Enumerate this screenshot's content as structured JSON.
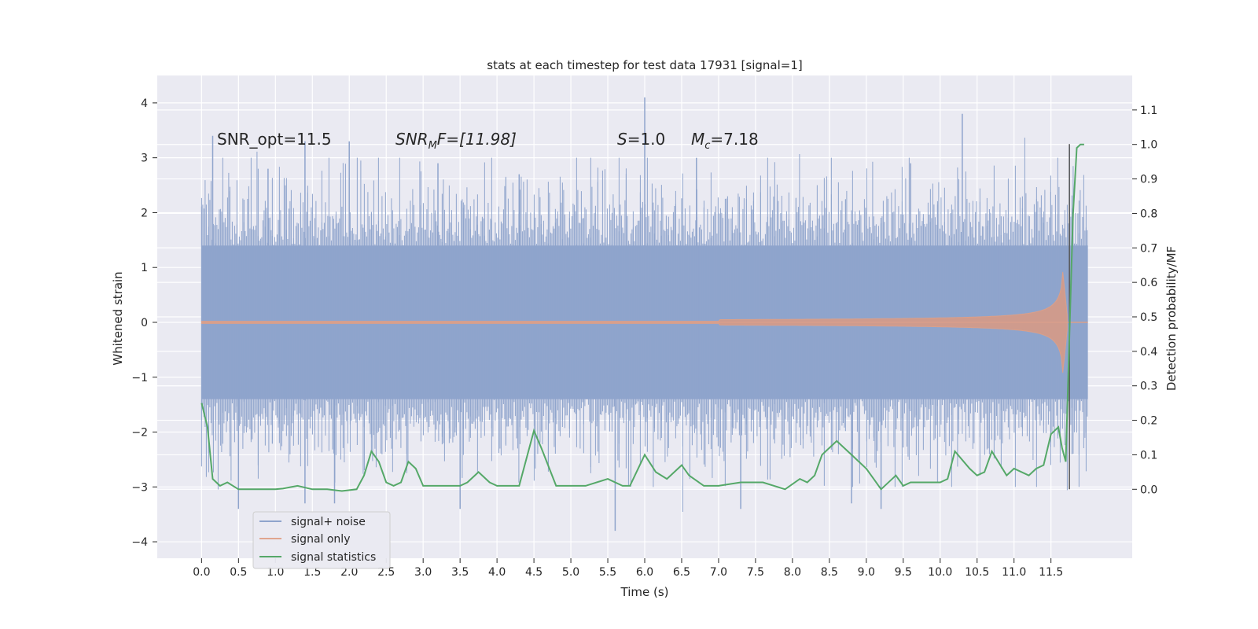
{
  "chart_data": {
    "type": "line",
    "title": "stats at each timestep for test data 17931 [signal=1]",
    "xlabel": "Time (s)",
    "ylabel_left": "Whitened strain",
    "ylabel_right": "Detection probability/MF",
    "xlim": [
      -0.6,
      12.6
    ],
    "ylim_left": [
      -4.3,
      4.5
    ],
    "ylim_right": [
      -0.2,
      1.2
    ],
    "x_ticks": [
      0.0,
      0.5,
      1.0,
      1.5,
      2.0,
      2.5,
      3.0,
      3.5,
      4.0,
      4.5,
      5.0,
      5.5,
      6.0,
      6.5,
      7.0,
      7.5,
      8.0,
      8.5,
      9.0,
      9.5,
      10.0,
      10.5,
      11.0,
      11.5
    ],
    "x_tick_labels": [
      "0.0",
      "0.5",
      "1.0",
      "1.5",
      "2.0",
      "2.5",
      "3.0",
      "3.5",
      "4.0",
      "4.5",
      "5.0",
      "5.5",
      "6.0",
      "6.5",
      "7.0",
      "7.5",
      "8.0",
      "8.5",
      "9.0",
      "9.5",
      "10.0",
      "10.5",
      "11.0",
      "11.5"
    ],
    "y_ticks_left": [
      4,
      3,
      2,
      1,
      0,
      -1,
      -2,
      -3,
      -4
    ],
    "y_tick_labels_left": [
      "4",
      "3",
      "2",
      "1",
      "0",
      "−1",
      "−2",
      "−3",
      "−4"
    ],
    "y_ticks_right": [
      1.1,
      1.0,
      0.9,
      0.8,
      0.7,
      0.6,
      0.5,
      0.4,
      0.3,
      0.2,
      0.1,
      0.0
    ],
    "y_tick_labels_right": [
      "1.1",
      "1.0",
      "0.9",
      "0.8",
      "0.7",
      "0.6",
      "0.5",
      "0.4",
      "0.3",
      "0.2",
      "0.1",
      "0.0"
    ],
    "grid": true,
    "legend_position": "lower-left",
    "annotations": {
      "snr_opt": "SNR_opt=11.5",
      "snr_mf_main": "SNR",
      "snr_mf_sub": "M",
      "snr_mf_rest": "F=[11.98]",
      "s_main": "S",
      "s_rest": "=1.0",
      "mc_main": "M",
      "mc_sub": "c",
      "mc_rest": "=7.18"
    },
    "vline_x": 11.75,
    "noise_range": [
      0.0,
      12.0
    ],
    "series": [
      {
        "name": "signal+ noise",
        "axis": "left",
        "color": "#8fa4cc",
        "envelope_upper_typical": 1.4,
        "envelope_lower_typical": -1.4,
        "peaks": [
          {
            "x": 0.15,
            "y": 3.4
          },
          {
            "x": 0.9,
            "y": 2.8
          },
          {
            "x": 1.4,
            "y": 3.3
          },
          {
            "x": 2.0,
            "y": 3.3
          },
          {
            "x": 3.2,
            "y": 2.9
          },
          {
            "x": 4.3,
            "y": 2.7
          },
          {
            "x": 6.0,
            "y": 4.1
          },
          {
            "x": 6.7,
            "y": 3.0
          },
          {
            "x": 9.6,
            "y": 2.9
          },
          {
            "x": 10.3,
            "y": 3.8
          },
          {
            "x": 11.75,
            "y": 3.2
          }
        ],
        "troughs": [
          {
            "x": 0.5,
            "y": -3.4
          },
          {
            "x": 1.4,
            "y": -3.3
          },
          {
            "x": 1.8,
            "y": -3.3
          },
          {
            "x": 3.5,
            "y": -3.4
          },
          {
            "x": 5.6,
            "y": -3.8
          },
          {
            "x": 7.3,
            "y": -3.4
          },
          {
            "x": 8.8,
            "y": -3.3
          },
          {
            "x": 9.2,
            "y": -3.4
          }
        ]
      },
      {
        "name": "signal only",
        "axis": "left",
        "color": "#d9a08b",
        "chirp_start": 7.0,
        "merger_time": 11.65,
        "peak_amplitude": 1.05
      },
      {
        "name": "signal statistics",
        "axis": "right",
        "color": "#55a868",
        "x": [
          0.0,
          0.08,
          0.15,
          0.25,
          0.35,
          0.5,
          0.7,
          1.0,
          1.1,
          1.3,
          1.5,
          1.7,
          1.9,
          2.1,
          2.2,
          2.3,
          2.4,
          2.5,
          2.6,
          2.7,
          2.8,
          2.9,
          3.0,
          3.2,
          3.5,
          3.6,
          3.75,
          3.9,
          4.0,
          4.3,
          4.5,
          4.6,
          4.8,
          5.0,
          5.2,
          5.5,
          5.7,
          5.8,
          6.0,
          6.15,
          6.3,
          6.5,
          6.6,
          6.8,
          7.0,
          7.3,
          7.6,
          7.9,
          8.1,
          8.2,
          8.3,
          8.4,
          8.6,
          8.8,
          9.0,
          9.1,
          9.2,
          9.4,
          9.5,
          9.6,
          9.8,
          10.0,
          10.1,
          10.2,
          10.4,
          10.5,
          10.6,
          10.7,
          10.9,
          11.0,
          11.2,
          11.3,
          11.4,
          11.5,
          11.6,
          11.65,
          11.7,
          11.75,
          11.8,
          11.85,
          11.9,
          11.95
        ],
        "y": [
          0.25,
          0.18,
          0.03,
          0.01,
          0.02,
          0.0,
          0.0,
          0.0,
          0.002,
          0.01,
          0.0,
          0.0,
          -0.005,
          0.0,
          0.04,
          0.11,
          0.08,
          0.02,
          0.01,
          0.02,
          0.08,
          0.06,
          0.01,
          0.01,
          0.01,
          0.02,
          0.05,
          0.02,
          0.01,
          0.01,
          0.17,
          0.12,
          0.01,
          0.01,
          0.01,
          0.03,
          0.01,
          0.01,
          0.1,
          0.05,
          0.03,
          0.07,
          0.04,
          0.01,
          0.01,
          0.02,
          0.02,
          0.0,
          0.03,
          0.02,
          0.04,
          0.1,
          0.14,
          0.1,
          0.06,
          0.03,
          0.0,
          0.04,
          0.01,
          0.02,
          0.02,
          0.02,
          0.03,
          0.11,
          0.06,
          0.04,
          0.05,
          0.11,
          0.04,
          0.06,
          0.04,
          0.06,
          0.07,
          0.16,
          0.18,
          0.12,
          0.08,
          0.45,
          0.8,
          0.99,
          1.0,
          1.0
        ]
      }
    ]
  }
}
